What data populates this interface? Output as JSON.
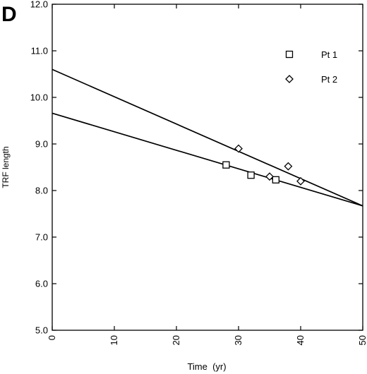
{
  "chart_data": {
    "type": "scatter",
    "panel_label": "D",
    "xlabel": "Time  (yr)",
    "ylabel": "TRF length",
    "xlim": [
      0,
      50
    ],
    "ylim": [
      5.0,
      12.0
    ],
    "x_ticks": [
      0,
      10,
      20,
      30,
      40,
      50
    ],
    "y_ticks": [
      5.0,
      6.0,
      7.0,
      8.0,
      9.0,
      10.0,
      11.0,
      12.0
    ],
    "y_tick_labels": [
      "5.0",
      "6.0",
      "7.0",
      "8.0",
      "9.0",
      "10.0",
      "11.0",
      "12.0"
    ],
    "grid": false,
    "legend_position": "top-right",
    "series": [
      {
        "name": "Pt 1",
        "marker": "square",
        "points": [
          [
            28,
            8.55
          ],
          [
            32,
            8.33
          ],
          [
            36,
            8.23
          ]
        ],
        "fit_line": [
          [
            0,
            9.66
          ],
          [
            50,
            7.67
          ]
        ]
      },
      {
        "name": "Pt 2",
        "marker": "diamond",
        "points": [
          [
            30,
            8.9
          ],
          [
            35,
            8.3
          ],
          [
            38,
            8.52
          ],
          [
            40,
            8.2
          ]
        ],
        "fit_line": [
          [
            0,
            10.6
          ],
          [
            50,
            7.67
          ]
        ]
      }
    ]
  }
}
